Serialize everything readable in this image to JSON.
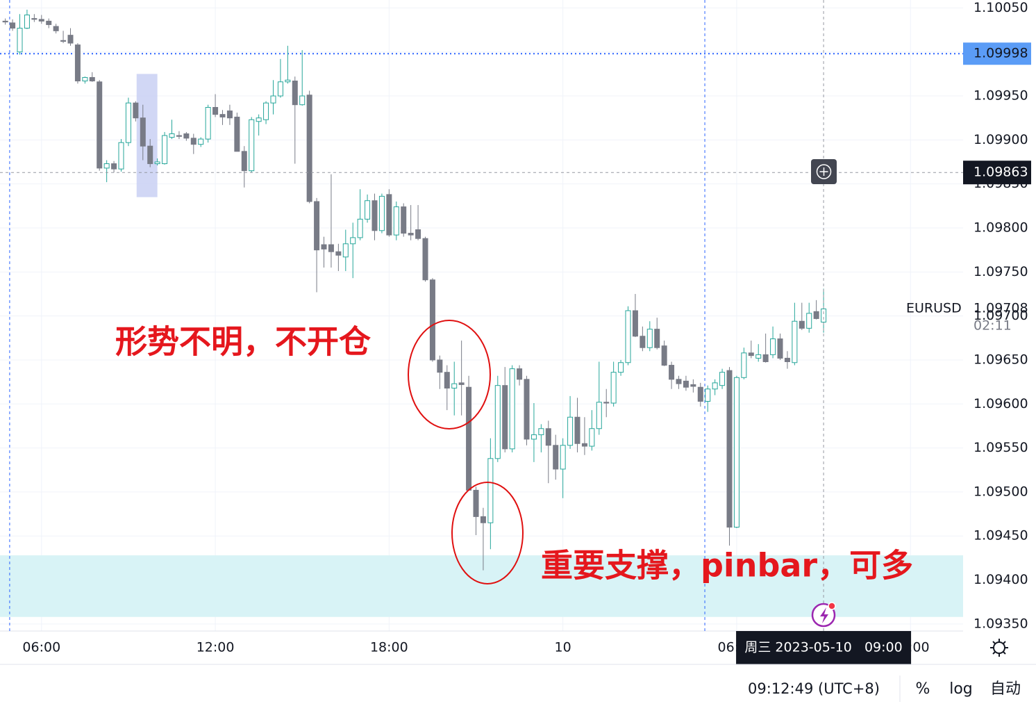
{
  "chart_data": {
    "type": "candlestick",
    "symbol": "EURUSD",
    "last_price_label": "1.09708",
    "countdown": "02:11",
    "colors": {
      "up": "#26a69a",
      "down": "#787b86"
    },
    "x": [
      "2023-05-09 04:45",
      "2023-05-09 05:00",
      "2023-05-09 05:15",
      "2023-05-09 05:30",
      "2023-05-09 05:45",
      "2023-05-09 06:00",
      "2023-05-09 06:15",
      "2023-05-09 06:30",
      "2023-05-09 06:45",
      "2023-05-09 07:00",
      "2023-05-09 07:15",
      "2023-05-09 07:30",
      "2023-05-09 07:45",
      "2023-05-09 08:00",
      "2023-05-09 08:15",
      "2023-05-09 08:30",
      "2023-05-09 08:45",
      "2023-05-09 09:00",
      "2023-05-09 09:15",
      "2023-05-09 09:30",
      "2023-05-09 09:45",
      "2023-05-09 10:00",
      "2023-05-09 10:15",
      "2023-05-09 10:30",
      "2023-05-09 10:45",
      "2023-05-09 11:00",
      "2023-05-09 11:15",
      "2023-05-09 11:30",
      "2023-05-09 11:45",
      "2023-05-09 12:00",
      "2023-05-09 12:15",
      "2023-05-09 12:30",
      "2023-05-09 12:45",
      "2023-05-09 13:00",
      "2023-05-09 13:15",
      "2023-05-09 13:30",
      "2023-05-09 13:45",
      "2023-05-09 14:00",
      "2023-05-09 14:15",
      "2023-05-09 14:30",
      "2023-05-09 14:45",
      "2023-05-09 15:00",
      "2023-05-09 15:15",
      "2023-05-09 15:30",
      "2023-05-09 15:45",
      "2023-05-09 16:00",
      "2023-05-09 16:15",
      "2023-05-09 16:30",
      "2023-05-09 16:45",
      "2023-05-09 17:00",
      "2023-05-09 17:15",
      "2023-05-09 17:30",
      "2023-05-09 17:45",
      "2023-05-09 18:00",
      "2023-05-09 18:15",
      "2023-05-09 18:30",
      "2023-05-09 18:45",
      "2023-05-09 19:00",
      "2023-05-09 19:15",
      "2023-05-09 19:30",
      "2023-05-09 19:45",
      "2023-05-09 20:00",
      "2023-05-09 20:15",
      "2023-05-09 20:30",
      "2023-05-09 20:45",
      "2023-05-09 21:00",
      "2023-05-09 21:15",
      "2023-05-09 21:30",
      "2023-05-09 21:45",
      "2023-05-09 22:00",
      "2023-05-09 22:15",
      "2023-05-09 22:30",
      "2023-05-09 22:45",
      "2023-05-09 23:00",
      "2023-05-09 23:15",
      "2023-05-09 23:30",
      "2023-05-09 23:45",
      "2023-05-10 00:00",
      "2023-05-10 00:15",
      "2023-05-10 00:30",
      "2023-05-10 00:45",
      "2023-05-10 01:00",
      "2023-05-10 01:15",
      "2023-05-10 01:30",
      "2023-05-10 01:45",
      "2023-05-10 02:00",
      "2023-05-10 02:15",
      "2023-05-10 02:30",
      "2023-05-10 02:45",
      "2023-05-10 03:00",
      "2023-05-10 03:15",
      "2023-05-10 03:30",
      "2023-05-10 03:45",
      "2023-05-10 04:00",
      "2023-05-10 04:15",
      "2023-05-10 04:30",
      "2023-05-10 04:45",
      "2023-05-10 05:00",
      "2023-05-10 05:15",
      "2023-05-10 05:30",
      "2023-05-10 05:45",
      "2023-05-10 06:00",
      "2023-05-10 06:15",
      "2023-05-10 06:30",
      "2023-05-10 06:45",
      "2023-05-10 07:00",
      "2023-05-10 07:15",
      "2023-05-10 07:30",
      "2023-05-10 07:45",
      "2023-05-10 08:00",
      "2023-05-10 08:15",
      "2023-05-10 08:30",
      "2023-05-10 08:45",
      "2023-05-10 09:00"
    ],
    "open": [
      1.10035,
      1.10033,
      1.1,
      1.10027,
      1.10038,
      1.10037,
      1.10035,
      1.10029,
      1.10013,
      1.10019,
      1.10008,
      1.09967,
      1.09971,
      1.09966,
      1.09868,
      1.09873,
      1.09867,
      1.09897,
      1.09942,
      1.09925,
      1.09893,
      1.09873,
      1.09873,
      1.09903,
      1.09905,
      1.09907,
      1.09902,
      1.09895,
      1.09901,
      1.09937,
      1.09929,
      1.09933,
      1.09926,
      1.09887,
      1.09865,
      1.09921,
      1.09923,
      1.09942,
      1.0995,
      1.09966,
      1.09967,
      1.0994,
      1.09951,
      1.0983,
      1.09781,
      1.09781,
      1.09773,
      1.09767,
      1.09782,
      1.09789,
      1.0981,
      1.09831,
      1.09797,
      1.09838,
      1.09792,
      1.09824,
      1.09794,
      1.09798,
      1.09788,
      1.09741,
      1.0965,
      1.09636,
      1.09618,
      1.09624,
      1.09619,
      1.09502,
      1.09472,
      1.09465,
      1.09538,
      1.09621,
      1.09549,
      1.0964,
      1.09628,
      1.0956,
      1.09565,
      1.09572,
      1.09553,
      1.09526,
      1.09553,
      1.09585,
      1.09555,
      1.09552,
      1.09572,
      1.09602,
      1.09601,
      1.09636,
      1.09647,
      1.09706,
      1.09677,
      1.09664,
      1.09685,
      1.09666,
      1.09644,
      1.09628,
      1.09626,
      1.09622,
      1.09619,
      1.09603,
      1.09617,
      1.09621,
      1.09638,
      1.0946,
      1.0963,
      1.09658,
      1.09652,
      1.09656,
      1.09656,
      1.09674,
      1.09652,
      1.09647,
      1.09694,
      1.09686,
      1.09705,
      1.09693
    ],
    "high": [
      1.10038,
      1.10037,
      1.10043,
      1.10048,
      1.10043,
      1.10042,
      1.10038,
      1.10032,
      1.10024,
      1.10027,
      1.1001,
      1.09972,
      1.09977,
      1.09968,
      1.09877,
      1.09876,
      1.09901,
      1.09948,
      1.09944,
      1.0994,
      1.09901,
      1.09879,
      1.09909,
      1.09923,
      1.0991,
      1.09909,
      1.09907,
      1.09903,
      1.0994,
      1.09952,
      1.09934,
      1.0994,
      1.09931,
      1.09893,
      1.09926,
      1.09929,
      1.09944,
      1.09968,
      1.09992,
      1.10007,
      1.09972,
      1.10002,
      1.09956,
      1.09834,
      1.0979,
      1.09861,
      1.09782,
      1.09798,
      1.09806,
      1.09844,
      1.09838,
      1.09839,
      1.09839,
      1.09844,
      1.0983,
      1.09828,
      1.09826,
      1.09826,
      1.0979,
      1.09743,
      1.09655,
      1.09644,
      1.09648,
      1.09672,
      1.09632,
      1.09506,
      1.09482,
      1.09561,
      1.09632,
      1.09642,
      1.09644,
      1.09644,
      1.09632,
      1.09601,
      1.09577,
      1.09581,
      1.09565,
      1.09561,
      1.09609,
      1.09607,
      1.09585,
      1.09593,
      1.09648,
      1.09617,
      1.09648,
      1.0965,
      1.09711,
      1.09725,
      1.09688,
      1.09694,
      1.09698,
      1.09672,
      1.09648,
      1.09632,
      1.09632,
      1.09628,
      1.09624,
      1.09621,
      1.09628,
      1.0964,
      1.09642,
      1.09632,
      1.09664,
      1.09672,
      1.09668,
      1.0968,
      1.09688,
      1.0968,
      1.0966,
      1.09715,
      1.09715,
      1.09715,
      1.09718,
      1.09731
    ],
    "low": [
      1.10031,
      1.10024,
      1.09997,
      1.10026,
      1.10034,
      1.10032,
      1.10027,
      1.10021,
      1.1001,
      1.10007,
      1.09964,
      1.09964,
      1.09966,
      1.09865,
      1.09852,
      1.09863,
      1.09864,
      1.09893,
      1.09921,
      1.09877,
      1.09869,
      1.09871,
      1.09872,
      1.09901,
      1.09901,
      1.09899,
      1.09884,
      1.09892,
      1.09897,
      1.09926,
      1.09917,
      1.09917,
      1.09887,
      1.09846,
      1.09863,
      1.09905,
      1.09918,
      1.09929,
      1.09948,
      1.09964,
      1.09873,
      1.09939,
      1.09828,
      1.09727,
      1.09755,
      1.09755,
      1.09751,
      1.09751,
      1.09743,
      1.09786,
      1.09806,
      1.09786,
      1.09794,
      1.0979,
      1.09786,
      1.0979,
      1.09786,
      1.09786,
      1.09739,
      1.09648,
      1.09617,
      1.09593,
      1.09587,
      1.09587,
      1.09502,
      1.09451,
      1.09411,
      1.09435,
      1.09534,
      1.09545,
      1.09545,
      1.09621,
      1.09553,
      1.09534,
      1.09545,
      1.0951,
      1.09514,
      1.09493,
      1.09549,
      1.09545,
      1.09542,
      1.09547,
      1.09565,
      1.09585,
      1.09597,
      1.09632,
      1.09644,
      1.09676,
      1.0966,
      1.0966,
      1.09662,
      1.09643,
      1.09617,
      1.09617,
      1.09615,
      1.09613,
      1.09597,
      1.09591,
      1.0961,
      1.09617,
      1.09439,
      1.09459,
      1.09628,
      1.09652,
      1.09648,
      1.09647,
      1.09652,
      1.0965,
      1.0964,
      1.09644,
      1.09684,
      1.09681,
      1.09696,
      1.09681
    ],
    "close": [
      1.10034,
      1.10027,
      1.10027,
      1.10042,
      1.10037,
      1.10035,
      1.10031,
      1.10024,
      1.10012,
      1.1001,
      1.09967,
      1.09971,
      1.09967,
      1.09868,
      1.09873,
      1.09867,
      1.09897,
      1.09942,
      1.09925,
      1.09893,
      1.09873,
      1.09875,
      1.09905,
      1.09907,
      1.09904,
      1.09902,
      1.09895,
      1.09901,
      1.09937,
      1.09929,
      1.09926,
      1.09925,
      1.09887,
      1.09865,
      1.09923,
      1.09925,
      1.09942,
      1.0995,
      1.09966,
      1.09968,
      1.0994,
      1.0995,
      1.0983,
      1.09775,
      1.09776,
      1.09773,
      1.09769,
      1.09782,
      1.09789,
      1.0981,
      1.09831,
      1.09797,
      1.09836,
      1.09792,
      1.09824,
      1.09794,
      1.09792,
      1.09788,
      1.09741,
      1.0965,
      1.09636,
      1.09618,
      1.09623,
      1.09622,
      1.09502,
      1.09472,
      1.09465,
      1.09538,
      1.09621,
      1.09549,
      1.0964,
      1.09628,
      1.0956,
      1.09565,
      1.09572,
      1.09553,
      1.09526,
      1.09553,
      1.09585,
      1.09555,
      1.09552,
      1.09572,
      1.09602,
      1.09601,
      1.09636,
      1.09647,
      1.09706,
      1.09677,
      1.09664,
      1.09685,
      1.09664,
      1.09644,
      1.09628,
      1.09623,
      1.09619,
      1.0962,
      1.09603,
      1.09617,
      1.09624,
      1.09636,
      1.0946,
      1.0963,
      1.09658,
      1.09655,
      1.09656,
      1.09648,
      1.09674,
      1.09652,
      1.09648,
      1.09694,
      1.09686,
      1.09703,
      1.09697,
      1.09708
    ],
    "xlim": [
      "2023-05-09 04:34",
      "2023-05-10 13:49"
    ],
    "xticks": [
      {
        "value": "2023-05-09 06:00",
        "label": "06:00"
      },
      {
        "value": "2023-05-09 12:00",
        "label": "12:00"
      },
      {
        "value": "2023-05-09 18:00",
        "label": "18:00"
      },
      {
        "value": "2023-05-10 00:00",
        "label": "10"
      },
      {
        "value": "2023-05-10 06:00",
        "label": "06:00"
      },
      {
        "value": "2023-05-10 12:00",
        "label": "12:00"
      }
    ],
    "ylim": [
      1.09342,
      1.10059
    ],
    "yticks": [
      {
        "value": 1.1005,
        "label": "1.10050"
      },
      {
        "value": 1.1,
        "label": "1.10000"
      },
      {
        "value": 1.0995,
        "label": "1.09950"
      },
      {
        "value": 1.099,
        "label": "1.09900"
      },
      {
        "value": 1.0985,
        "label": "1.09850"
      },
      {
        "value": 1.098,
        "label": "1.09800"
      },
      {
        "value": 1.0975,
        "label": "1.09750"
      },
      {
        "value": 1.097,
        "label": "1.09700"
      },
      {
        "value": 1.0965,
        "label": "1.09650"
      },
      {
        "value": 1.096,
        "label": "1.09600"
      },
      {
        "value": 1.0955,
        "label": "1.09550"
      },
      {
        "value": 1.095,
        "label": "1.09500"
      },
      {
        "value": 1.0945,
        "label": "1.09450"
      },
      {
        "value": 1.094,
        "label": "1.09400"
      },
      {
        "value": 1.0935,
        "label": "1.09350"
      }
    ],
    "grid": true,
    "hline": {
      "value": 1.09998,
      "label": "1.09998",
      "color": "#2962ff"
    },
    "crosshair": {
      "x": "2023-05-10 09:00",
      "label": "周三 2023-05-10   09:00",
      "price": {
        "value": 1.09863,
        "label": "1.09863"
      }
    },
    "zone": {
      "from": 1.09358,
      "to": 1.09428,
      "color": "#d8f3f6"
    },
    "box": {
      "x": [
        "2023-05-09 09:17",
        "2023-05-09 10:00"
      ],
      "y": [
        1.09835,
        1.09975
      ],
      "color": "#c9d0f3"
    },
    "vlines": [
      "2023-05-09 04:54",
      "2023-05-10 04:54"
    ],
    "annotations": [
      "形势不明，不开仓",
      "重要支撑，pinbar，可多"
    ]
  },
  "ui": {
    "clock": "09:12:49 (UTC+8)",
    "percent": "%",
    "log": "log",
    "auto": "自动"
  }
}
